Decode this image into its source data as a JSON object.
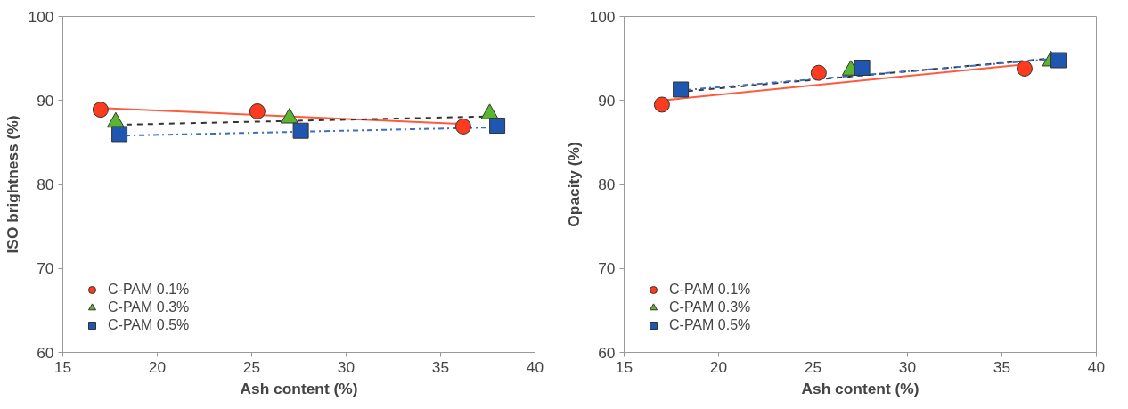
{
  "chart_data": [
    {
      "type": "scatter",
      "xlabel": "Ash content (%)",
      "ylabel": "ISO brightness (%)",
      "xlim": [
        15,
        40
      ],
      "xticks": [
        15,
        20,
        25,
        30,
        35,
        40
      ],
      "ylim": [
        60,
        100
      ],
      "yticks": [
        60,
        70,
        80,
        90,
        100
      ],
      "grid": false,
      "legend": "bottom left",
      "series": [
        {
          "type": "line",
          "color": "#ff5a3c",
          "line_style": "solid",
          "marker": "none",
          "x": [
            17.0,
            36.2
          ],
          "values": [
            89.1,
            87.2
          ]
        },
        {
          "type": "line",
          "color": "#333333",
          "line_style": "dashed",
          "marker": "none",
          "x": [
            17.8,
            37.6
          ],
          "values": [
            87.1,
            88.1
          ]
        },
        {
          "type": "line",
          "color": "#3a6fc8",
          "line_style": "dashdot",
          "marker": "none",
          "x": [
            18.0,
            38.0
          ],
          "values": [
            85.8,
            86.8
          ]
        },
        {
          "type": "scatter",
          "name": "C-PAM 0.1%",
          "color": "#ff3b1f",
          "marker": "circle",
          "x": [
            17.0,
            25.3,
            36.2
          ],
          "values": [
            88.9,
            88.7,
            86.9
          ]
        },
        {
          "type": "scatter",
          "name": "C-PAM 0.3%",
          "color": "#5cb531",
          "marker": "triangle",
          "x": [
            17.8,
            27.0,
            37.6
          ],
          "values": [
            87.4,
            87.9,
            88.4
          ]
        },
        {
          "type": "scatter",
          "name": "C-PAM 0.5%",
          "color": "#1f56b0",
          "marker": "square",
          "x": [
            18.0,
            27.6,
            38.0
          ],
          "values": [
            86.0,
            86.4,
            87.0
          ]
        }
      ]
    },
    {
      "type": "scatter",
      "xlabel": "Ash content (%)",
      "ylabel": "Opacity (%)",
      "xlim": [
        15,
        40
      ],
      "xticks": [
        15,
        20,
        25,
        30,
        35,
        40
      ],
      "ylim": [
        60,
        100
      ],
      "yticks": [
        60,
        70,
        80,
        90,
        100
      ],
      "grid": false,
      "legend": "bottom left",
      "series": [
        {
          "type": "line",
          "color": "#ff5a3c",
          "line_style": "solid",
          "marker": "none",
          "x": [
            17.0,
            36.2
          ],
          "values": [
            90.0,
            94.3
          ]
        },
        {
          "type": "line",
          "color": "#333333",
          "line_style": "dashed",
          "marker": "none",
          "x": [
            17.8,
            37.6
          ],
          "values": [
            91.0,
            95.0
          ]
        },
        {
          "type": "line",
          "color": "#3a6fc8",
          "line_style": "dashdot",
          "marker": "none",
          "x": [
            18.0,
            38.0
          ],
          "values": [
            91.2,
            95.0
          ]
        },
        {
          "type": "scatter",
          "name": "C-PAM 0.1%",
          "color": "#ff3b1f",
          "marker": "circle",
          "x": [
            17.0,
            25.3,
            36.2
          ],
          "values": [
            89.5,
            93.3,
            93.8
          ]
        },
        {
          "type": "scatter",
          "name": "C-PAM 0.3%",
          "color": "#5cb531",
          "marker": "triangle",
          "x": [
            27.0,
            37.6
          ],
          "values": [
            93.6,
            94.7
          ]
        },
        {
          "type": "scatter",
          "name": "C-PAM 0.5%",
          "color": "#1f56b0",
          "marker": "square",
          "x": [
            18.0,
            27.6,
            38.0
          ],
          "values": [
            91.3,
            93.9,
            94.8
          ]
        }
      ]
    }
  ]
}
